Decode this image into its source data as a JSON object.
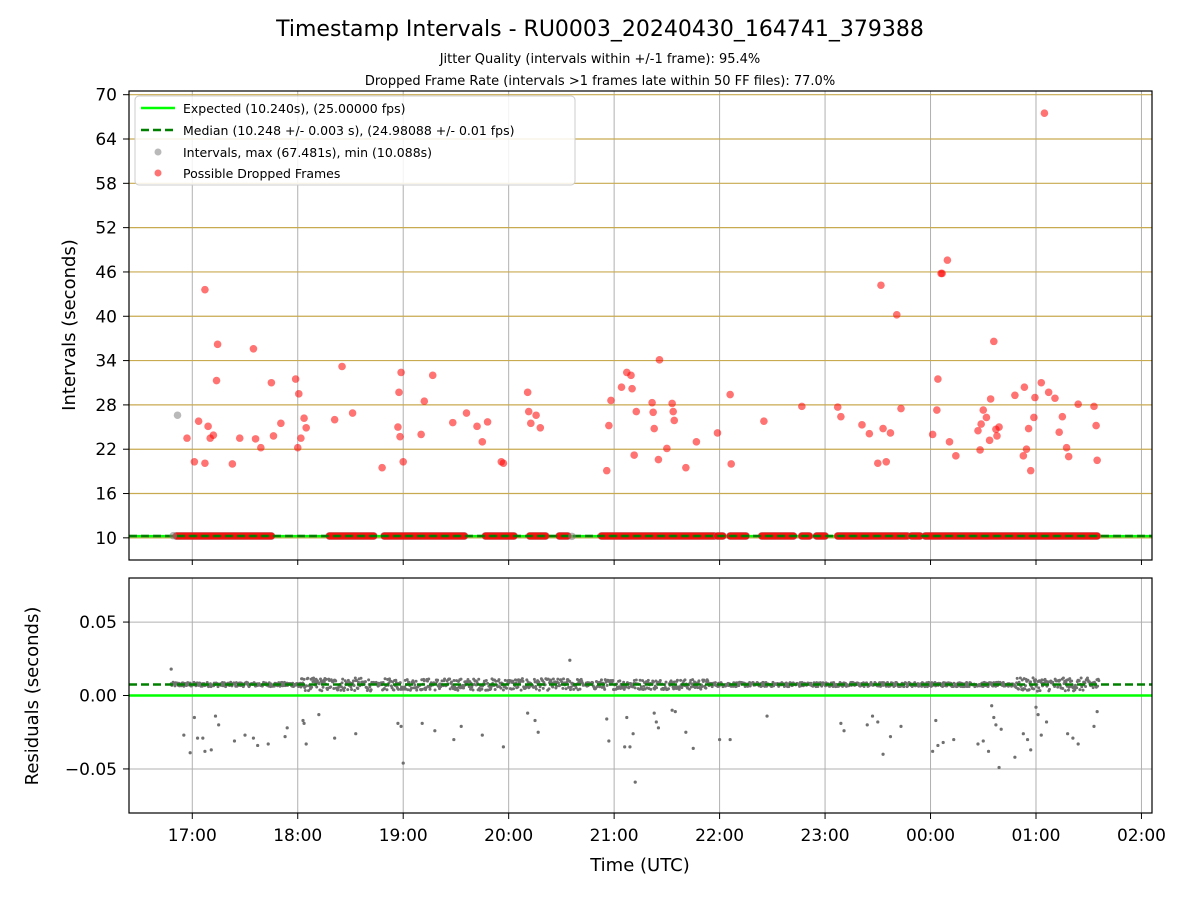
{
  "chart_data": [
    {
      "type": "scatter",
      "title": "Timestamp Intervals - RU0003_20240430_164741_379388",
      "subtitle_lines": [
        "Jitter Quality (intervals within +/-1 frame): 95.4%",
        "Dropped Frame Rate (intervals >1 frames late within 50 FF files): 77.0%"
      ],
      "xlabel": "",
      "ylabel": "Intervals (seconds)",
      "x_range_hours": [
        16.4,
        26.1
      ],
      "ylim": [
        7.0,
        70.5
      ],
      "y_ticks": [
        10,
        16,
        22,
        28,
        34,
        40,
        46,
        52,
        58,
        64,
        70
      ],
      "x_ticks": [
        17,
        18,
        19,
        20,
        21,
        22,
        23,
        24,
        25,
        26
      ],
      "x_tick_labels": [
        "17:00",
        "18:00",
        "19:00",
        "20:00",
        "21:00",
        "22:00",
        "23:00",
        "00:00",
        "01:00",
        "02:00"
      ],
      "grid": true,
      "legend_position": "upper-left",
      "legend": [
        "Expected (10.240s), (25.00000 fps)",
        "Median (10.248 +/- 0.003 s), (24.98088 +/- 0.01 fps)",
        "Intervals, max (67.481s), min (10.088s)",
        "Possible Dropped Frames"
      ],
      "expected_interval": 10.24,
      "median_interval": 10.248,
      "colors": {
        "expected": "#00ff00",
        "median": "#008000",
        "intervals": "#808080",
        "dropped": "#ff0000",
        "hgrid": "#c8aa50",
        "vgrid": "#b0b0b0"
      },
      "baseline_band": {
        "y": 10.25,
        "segments": [
          [
            16.85,
            17.75
          ],
          [
            18.3,
            18.72
          ],
          [
            18.82,
            19.58
          ],
          [
            19.78,
            20.05
          ],
          [
            20.2,
            20.35
          ],
          [
            20.48,
            20.56
          ],
          [
            20.88,
            21.95
          ],
          [
            21.98,
            22.03
          ],
          [
            22.1,
            22.25
          ],
          [
            22.4,
            22.7
          ],
          [
            22.78,
            22.85
          ],
          [
            22.92,
            23.0
          ],
          [
            23.12,
            23.78
          ],
          [
            23.82,
            23.9
          ],
          [
            23.95,
            25.58
          ]
        ]
      },
      "intervals_outliers": [
        [
          16.86,
          26.6
        ],
        [
          16.82,
          10.3
        ],
        [
          20.6,
          10.2
        ]
      ],
      "dropped_frames": [
        [
          16.95,
          23.5
        ],
        [
          17.02,
          20.3
        ],
        [
          17.06,
          25.8
        ],
        [
          17.12,
          20.1
        ],
        [
          17.12,
          43.6
        ],
        [
          17.15,
          25.1
        ],
        [
          17.17,
          23.5
        ],
        [
          17.2,
          23.9
        ],
        [
          17.23,
          31.3
        ],
        [
          17.24,
          36.2
        ],
        [
          17.38,
          20.0
        ],
        [
          17.45,
          23.5
        ],
        [
          17.58,
          35.6
        ],
        [
          17.6,
          23.4
        ],
        [
          17.65,
          22.2
        ],
        [
          17.75,
          31.0
        ],
        [
          17.77,
          23.8
        ],
        [
          17.84,
          25.5
        ],
        [
          17.98,
          31.5
        ],
        [
          18.0,
          22.2
        ],
        [
          18.01,
          29.5
        ],
        [
          18.03,
          23.5
        ],
        [
          18.06,
          26.2
        ],
        [
          18.08,
          24.9
        ],
        [
          18.35,
          26.0
        ],
        [
          18.42,
          33.2
        ],
        [
          18.52,
          26.9
        ],
        [
          18.8,
          19.5
        ],
        [
          18.95,
          25.0
        ],
        [
          18.96,
          29.7
        ],
        [
          18.97,
          23.7
        ],
        [
          18.98,
          32.4
        ],
        [
          19.0,
          20.3
        ],
        [
          19.17,
          24.0
        ],
        [
          19.2,
          28.5
        ],
        [
          19.28,
          32.0
        ],
        [
          19.47,
          25.6
        ],
        [
          19.6,
          26.9
        ],
        [
          19.7,
          25.1
        ],
        [
          19.75,
          23.0
        ],
        [
          19.8,
          25.7
        ],
        [
          19.93,
          20.3
        ],
        [
          19.95,
          20.1
        ],
        [
          20.18,
          29.7
        ],
        [
          20.19,
          27.1
        ],
        [
          20.21,
          25.5
        ],
        [
          20.26,
          26.6
        ],
        [
          20.3,
          24.9
        ],
        [
          20.93,
          19.1
        ],
        [
          20.95,
          25.2
        ],
        [
          20.97,
          28.6
        ],
        [
          21.07,
          30.4
        ],
        [
          21.12,
          32.4
        ],
        [
          21.16,
          32.0
        ],
        [
          21.17,
          30.2
        ],
        [
          21.19,
          21.2
        ],
        [
          21.21,
          27.1
        ],
        [
          21.36,
          28.3
        ],
        [
          21.37,
          27.0
        ],
        [
          21.38,
          24.8
        ],
        [
          21.42,
          20.6
        ],
        [
          21.43,
          34.1
        ],
        [
          21.5,
          22.1
        ],
        [
          21.55,
          28.2
        ],
        [
          21.56,
          27.1
        ],
        [
          21.57,
          25.9
        ],
        [
          21.68,
          19.5
        ],
        [
          21.78,
          23.0
        ],
        [
          21.98,
          24.2
        ],
        [
          22.1,
          29.4
        ],
        [
          22.11,
          20.0
        ],
        [
          22.42,
          25.8
        ],
        [
          22.78,
          27.8
        ],
        [
          23.12,
          27.7
        ],
        [
          23.15,
          26.4
        ],
        [
          23.35,
          25.3
        ],
        [
          23.42,
          24.1
        ],
        [
          23.5,
          20.1
        ],
        [
          23.53,
          44.2
        ],
        [
          23.55,
          24.8
        ],
        [
          23.58,
          20.3
        ],
        [
          23.62,
          24.2
        ],
        [
          23.68,
          40.2
        ],
        [
          23.72,
          27.5
        ],
        [
          24.02,
          24.0
        ],
        [
          24.06,
          27.3
        ],
        [
          24.07,
          31.5
        ],
        [
          24.1,
          45.8
        ],
        [
          24.11,
          45.8
        ],
        [
          24.16,
          47.6
        ],
        [
          24.18,
          23.0
        ],
        [
          24.24,
          21.1
        ],
        [
          24.45,
          24.5
        ],
        [
          24.47,
          21.9
        ],
        [
          24.48,
          25.4
        ],
        [
          24.5,
          27.3
        ],
        [
          24.53,
          26.3
        ],
        [
          24.56,
          23.2
        ],
        [
          24.57,
          28.8
        ],
        [
          24.6,
          36.6
        ],
        [
          24.62,
          24.7
        ],
        [
          24.63,
          23.8
        ],
        [
          24.65,
          25.0
        ],
        [
          24.8,
          29.3
        ],
        [
          24.88,
          21.1
        ],
        [
          24.89,
          30.4
        ],
        [
          24.91,
          22.0
        ],
        [
          24.93,
          24.8
        ],
        [
          24.95,
          19.1
        ],
        [
          24.98,
          26.3
        ],
        [
          24.99,
          29.0
        ],
        [
          25.05,
          31.0
        ],
        [
          25.08,
          67.5
        ],
        [
          25.12,
          29.7
        ],
        [
          25.18,
          28.9
        ],
        [
          25.22,
          24.3
        ],
        [
          25.25,
          26.4
        ],
        [
          25.29,
          22.2
        ],
        [
          25.31,
          21.0
        ],
        [
          25.4,
          28.1
        ],
        [
          25.55,
          27.8
        ],
        [
          25.57,
          25.2
        ],
        [
          25.58,
          20.5
        ]
      ]
    },
    {
      "type": "scatter",
      "title": "",
      "xlabel": "Time (UTC)",
      "ylabel": "Residuals (seconds)",
      "x_range_hours": [
        16.4,
        26.1
      ],
      "ylim": [
        -0.08,
        0.08
      ],
      "y_ticks": [
        0.05,
        0.0,
        -0.05
      ],
      "y_tick_labels": [
        "0.05",
        "0.00",
        "−0.05"
      ],
      "x_ticks": [
        17,
        18,
        19,
        20,
        21,
        22,
        23,
        24,
        25,
        26
      ],
      "x_tick_labels": [
        "17:00",
        "18:00",
        "19:00",
        "20:00",
        "21:00",
        "22:00",
        "23:00",
        "00:00",
        "01:00",
        "02:00"
      ],
      "grid": true,
      "expected_residual": 0.0,
      "median_residual": 0.0075,
      "colors": {
        "expected": "#00ff00",
        "median": "#008000",
        "points": "#707070"
      },
      "dense_band": {
        "x_range": [
          16.8,
          25.6
        ],
        "center": 0.0075,
        "noisy_segments": [
          [
            18.0,
            18.7,
            0.0045
          ],
          [
            18.8,
            20.0,
            0.004
          ],
          [
            20.0,
            20.7,
            0.004
          ],
          [
            20.8,
            21.9,
            0.0035
          ],
          [
            24.8,
            25.6,
            0.0045
          ]
        ],
        "base_spread": 0.0015
      },
      "outliers": [
        [
          16.8,
          0.018
        ],
        [
          16.92,
          -0.027
        ],
        [
          16.98,
          -0.039
        ],
        [
          17.02,
          -0.015
        ],
        [
          17.05,
          -0.029
        ],
        [
          17.1,
          -0.029
        ],
        [
          17.12,
          -0.038
        ],
        [
          17.18,
          -0.037
        ],
        [
          17.22,
          -0.014
        ],
        [
          17.25,
          -0.02
        ],
        [
          17.4,
          -0.031
        ],
        [
          17.5,
          -0.027
        ],
        [
          17.58,
          -0.029
        ],
        [
          17.62,
          -0.034
        ],
        [
          17.72,
          -0.033
        ],
        [
          17.88,
          -0.028
        ],
        [
          17.9,
          -0.022
        ],
        [
          18.05,
          -0.017
        ],
        [
          18.06,
          -0.019
        ],
        [
          18.08,
          -0.033
        ],
        [
          18.2,
          -0.013
        ],
        [
          18.35,
          -0.029
        ],
        [
          18.55,
          -0.026
        ],
        [
          18.95,
          -0.019
        ],
        [
          18.98,
          -0.021
        ],
        [
          19.0,
          -0.046
        ],
        [
          19.18,
          -0.019
        ],
        [
          19.3,
          -0.024
        ],
        [
          19.48,
          -0.03
        ],
        [
          19.55,
          -0.021
        ],
        [
          19.75,
          -0.027
        ],
        [
          19.95,
          -0.035
        ],
        [
          20.18,
          -0.012
        ],
        [
          20.25,
          -0.017
        ],
        [
          20.28,
          -0.025
        ],
        [
          20.93,
          -0.016
        ],
        [
          20.95,
          -0.031
        ],
        [
          21.1,
          -0.035
        ],
        [
          21.12,
          -0.015
        ],
        [
          21.15,
          -0.035
        ],
        [
          21.18,
          -0.026
        ],
        [
          21.2,
          -0.059
        ],
        [
          21.38,
          -0.012
        ],
        [
          21.4,
          -0.018
        ],
        [
          21.42,
          -0.022
        ],
        [
          21.55,
          -0.01
        ],
        [
          21.58,
          -0.011
        ],
        [
          21.68,
          -0.025
        ],
        [
          21.75,
          -0.036
        ],
        [
          22.0,
          -0.03
        ],
        [
          22.1,
          -0.03
        ],
        [
          22.45,
          -0.014
        ],
        [
          23.15,
          -0.019
        ],
        [
          23.18,
          -0.024
        ],
        [
          23.4,
          -0.02
        ],
        [
          23.45,
          -0.014
        ],
        [
          23.5,
          -0.018
        ],
        [
          23.55,
          -0.04
        ],
        [
          23.62,
          -0.028
        ],
        [
          23.72,
          -0.021
        ],
        [
          24.02,
          -0.038
        ],
        [
          24.05,
          -0.017
        ],
        [
          24.07,
          -0.034
        ],
        [
          24.12,
          -0.032
        ],
        [
          24.22,
          -0.03
        ],
        [
          24.45,
          -0.033
        ],
        [
          24.5,
          -0.031
        ],
        [
          24.55,
          -0.038
        ],
        [
          24.58,
          -0.007
        ],
        [
          24.6,
          -0.015
        ],
        [
          24.62,
          -0.02
        ],
        [
          24.65,
          -0.049
        ],
        [
          24.67,
          -0.023
        ],
        [
          24.8,
          -0.042
        ],
        [
          24.88,
          -0.026
        ],
        [
          24.92,
          -0.03
        ],
        [
          24.95,
          -0.037
        ],
        [
          25.0,
          -0.008
        ],
        [
          25.02,
          -0.013
        ],
        [
          25.05,
          -0.027
        ],
        [
          25.1,
          -0.018
        ],
        [
          25.3,
          -0.026
        ],
        [
          25.35,
          -0.029
        ],
        [
          25.4,
          -0.033
        ],
        [
          25.55,
          -0.021
        ],
        [
          25.58,
          -0.011
        ],
        [
          20.58,
          0.024
        ]
      ]
    }
  ]
}
